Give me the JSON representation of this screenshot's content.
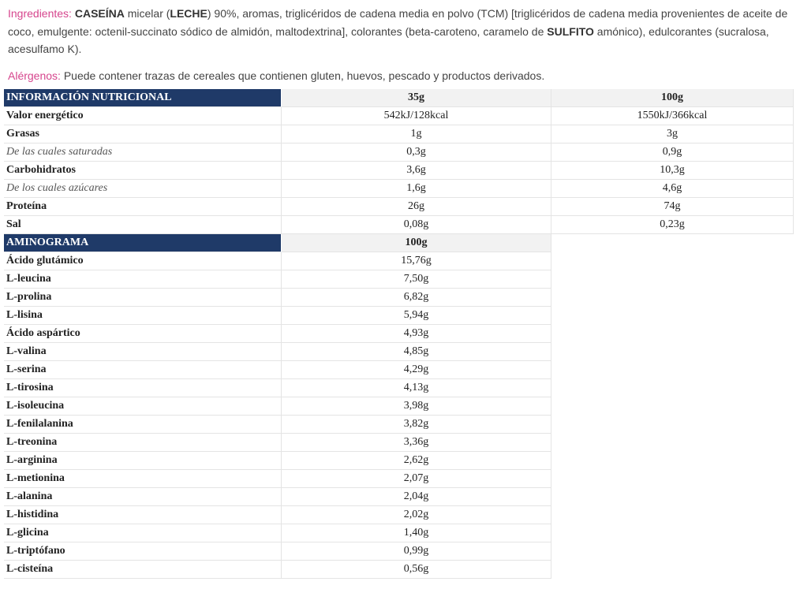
{
  "ingredients": {
    "label": "Ingredientes:",
    "text": [
      {
        "t": " ",
        "b": false
      },
      {
        "t": "CASEÍNA",
        "b": true
      },
      {
        "t": " micelar (",
        "b": false
      },
      {
        "t": "LECHE",
        "b": true
      },
      {
        "t": ") 90%, aromas, triglicéridos de cadena media en polvo (TCM) [triglicéridos de cadena media provenientes de aceite de coco, emulgente: octenil-succinato sódico de almidón, maltodextrina], colorantes (beta-caroteno, caramelo de ",
        "b": false
      },
      {
        "t": "SULFITO",
        "b": true
      },
      {
        "t": " amónico), edulcorantes (sucralosa, acesulfamo K).",
        "b": false
      }
    ]
  },
  "allergens": {
    "label": "Alérgenos:",
    "text": " Puede contener trazas de cereales que contienen gluten, huevos, pescado y productos derivados."
  },
  "nutrition": {
    "header": [
      "INFORMACIÓN NUTRICIONAL",
      "35g",
      "100g"
    ],
    "rows": [
      {
        "name": "Valor energético",
        "v35": "542kJ/128kcal",
        "v100": "1550kJ/366kcal",
        "italic": false
      },
      {
        "name": "Grasas",
        "v35": "1g",
        "v100": "3g",
        "italic": false
      },
      {
        "name": "De las cuales saturadas",
        "v35": "0,3g",
        "v100": "0,9g",
        "italic": true
      },
      {
        "name": "Carbohidratos",
        "v35": "3,6g",
        "v100": "10,3g",
        "italic": false
      },
      {
        "name": "De los cuales azúcares",
        "v35": "1,6g",
        "v100": "4,6g",
        "italic": true
      },
      {
        "name": "Proteína",
        "v35": "26g",
        "v100": "74g",
        "italic": false
      },
      {
        "name": "Sal",
        "v35": "0,08g",
        "v100": "0,23g",
        "italic": false
      }
    ]
  },
  "aminogram": {
    "header": [
      "AMINOGRAMA",
      "100g"
    ],
    "rows": [
      {
        "name": "Ácido glutámico",
        "v100": "15,76g"
      },
      {
        "name": "L-leucina",
        "v100": "7,50g"
      },
      {
        "name": "L-prolina",
        "v100": "6,82g"
      },
      {
        "name": "L-lisina",
        "v100": "5,94g"
      },
      {
        "name": "Ácido aspártico",
        "v100": "4,93g"
      },
      {
        "name": "L-valina",
        "v100": "4,85g"
      },
      {
        "name": "L-serina",
        "v100": "4,29g"
      },
      {
        "name": "L-tirosina",
        "v100": "4,13g"
      },
      {
        "name": "L-isoleucina",
        "v100": "3,98g"
      },
      {
        "name": "L-fenilalanina",
        "v100": "3,82g"
      },
      {
        "name": "L-treonina",
        "v100": "3,36g"
      },
      {
        "name": "L-arginina",
        "v100": "2,62g"
      },
      {
        "name": "L-metionina",
        "v100": "2,07g"
      },
      {
        "name": "L-alanina",
        "v100": "2,04g"
      },
      {
        "name": "L-histidina",
        "v100": "2,02g"
      },
      {
        "name": "L-glicina",
        "v100": "1,40g"
      },
      {
        "name": "L-triptófano",
        "v100": "0,99g"
      },
      {
        "name": "L-cisteína",
        "v100": "0,56g"
      }
    ]
  }
}
